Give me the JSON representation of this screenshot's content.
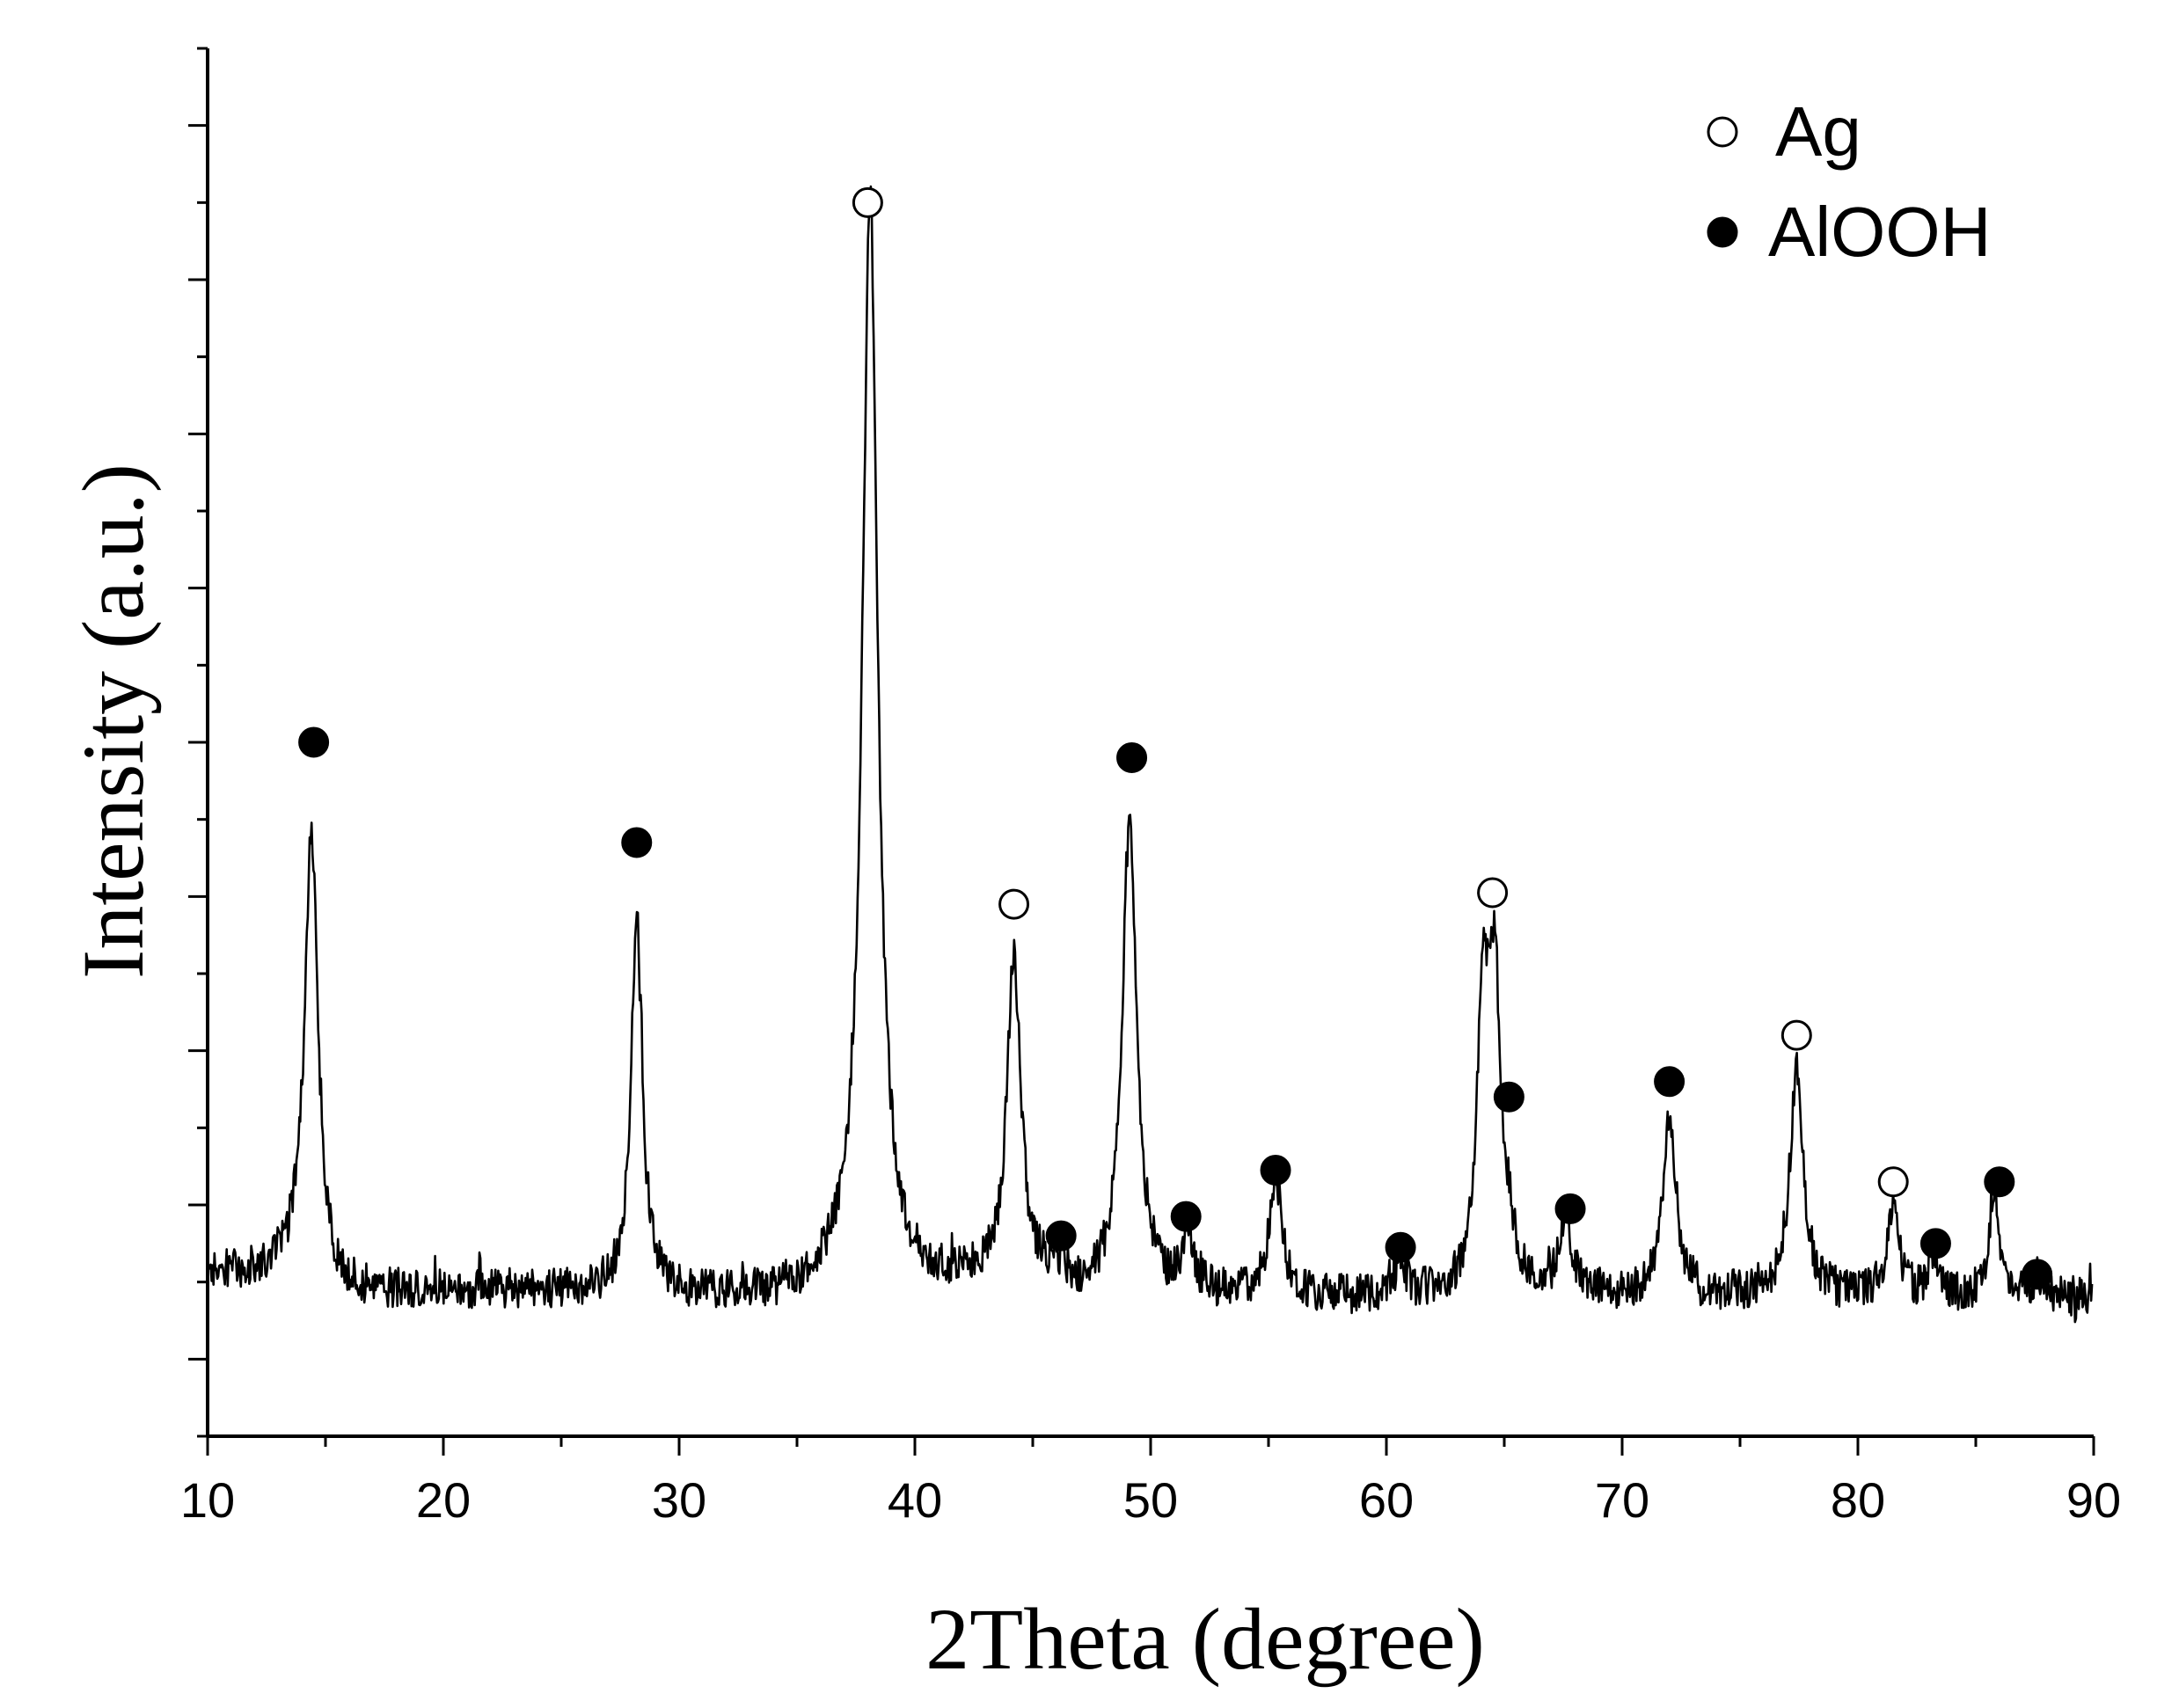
{
  "chart_data": {
    "type": "line",
    "title": "",
    "xlabel": "2Theta (degree)",
    "ylabel": "Intensity (a.u.)",
    "xlim": [
      10,
      90
    ],
    "ylim": [
      -10,
      170
    ],
    "x_ticks": [
      10,
      20,
      30,
      40,
      50,
      60,
      70,
      80,
      90
    ],
    "x_tick_labels": [
      "10",
      "20",
      "30",
      "40",
      "50",
      "60",
      "70",
      "80",
      "90"
    ],
    "grid": false,
    "legend_position": "top-right",
    "legend": [
      {
        "label": "Ag",
        "marker": "open-circle"
      },
      {
        "label": "AlOOH",
        "marker": "filled-circle"
      }
    ],
    "baseline_level": 8,
    "series": [
      {
        "name": "",
        "color": "#000000",
        "peaks": [
          {
            "x": 14.4,
            "height": 60,
            "width": 0.35,
            "phase": "AlOOH"
          },
          {
            "x": 28.2,
            "height": 48,
            "width": 0.3,
            "phase": "AlOOH"
          },
          {
            "x": 38.1,
            "height": 141,
            "width": 0.4,
            "phase": "Ag"
          },
          {
            "x": 44.2,
            "height": 42,
            "width": 0.35,
            "phase": "Ag"
          },
          {
            "x": 46.2,
            "height": 3,
            "width": 0.3,
            "phase": "AlOOH"
          },
          {
            "x": 49.1,
            "height": 61,
            "width": 0.38,
            "phase": "AlOOH"
          },
          {
            "x": 51.6,
            "height": 8,
            "width": 0.25,
            "phase": "AlOOH"
          },
          {
            "x": 55.3,
            "height": 16,
            "width": 0.3,
            "phase": "AlOOH"
          },
          {
            "x": 60.6,
            "height": 5,
            "width": 0.25,
            "phase": "AlOOH"
          },
          {
            "x": 64.1,
            "height": 36,
            "width": 0.3,
            "phase": ""
          },
          {
            "x": 64.6,
            "height": 37,
            "width": 0.3,
            "phase": "Ag"
          },
          {
            "x": 65.2,
            "height": 5,
            "width": 0.3,
            "phase": "AlOOH"
          },
          {
            "x": 67.6,
            "height": 9,
            "width": 0.35,
            "phase": "AlOOH"
          },
          {
            "x": 72.0,
            "height": 23,
            "width": 0.35,
            "phase": "AlOOH"
          },
          {
            "x": 77.4,
            "height": 29,
            "width": 0.35,
            "phase": "Ag"
          },
          {
            "x": 81.5,
            "height": 11,
            "width": 0.3,
            "phase": "Ag"
          },
          {
            "x": 83.2,
            "height": 5,
            "width": 0.25,
            "phase": "AlOOH"
          },
          {
            "x": 85.8,
            "height": 14,
            "width": 0.25,
            "phase": "AlOOH"
          },
          {
            "x": 87.6,
            "height": 3,
            "width": 0.2,
            "phase": "AlOOH"
          }
        ]
      }
    ],
    "markers": [
      {
        "x": 14.5,
        "y": 80,
        "phase": "AlOOH"
      },
      {
        "x": 28.2,
        "y": 67,
        "phase": "AlOOH"
      },
      {
        "x": 38.0,
        "y": 150,
        "phase": "Ag"
      },
      {
        "x": 44.2,
        "y": 59,
        "phase": "Ag"
      },
      {
        "x": 46.2,
        "y": 16,
        "phase": "AlOOH"
      },
      {
        "x": 49.2,
        "y": 78,
        "phase": "AlOOH"
      },
      {
        "x": 51.5,
        "y": 18.5,
        "phase": "AlOOH"
      },
      {
        "x": 55.3,
        "y": 24.5,
        "phase": "AlOOH"
      },
      {
        "x": 60.6,
        "y": 14.5,
        "phase": "AlOOH"
      },
      {
        "x": 64.5,
        "y": 60.5,
        "phase": "Ag"
      },
      {
        "x": 65.2,
        "y": 34,
        "phase": "AlOOH"
      },
      {
        "x": 67.8,
        "y": 19.5,
        "phase": "AlOOH"
      },
      {
        "x": 72.0,
        "y": 36,
        "phase": "AlOOH"
      },
      {
        "x": 77.4,
        "y": 42,
        "phase": "Ag"
      },
      {
        "x": 81.5,
        "y": 23,
        "phase": "Ag"
      },
      {
        "x": 83.3,
        "y": 15,
        "phase": "AlOOH"
      },
      {
        "x": 86.0,
        "y": 23,
        "phase": "AlOOH"
      },
      {
        "x": 87.6,
        "y": 11,
        "phase": "AlOOH"
      }
    ]
  }
}
